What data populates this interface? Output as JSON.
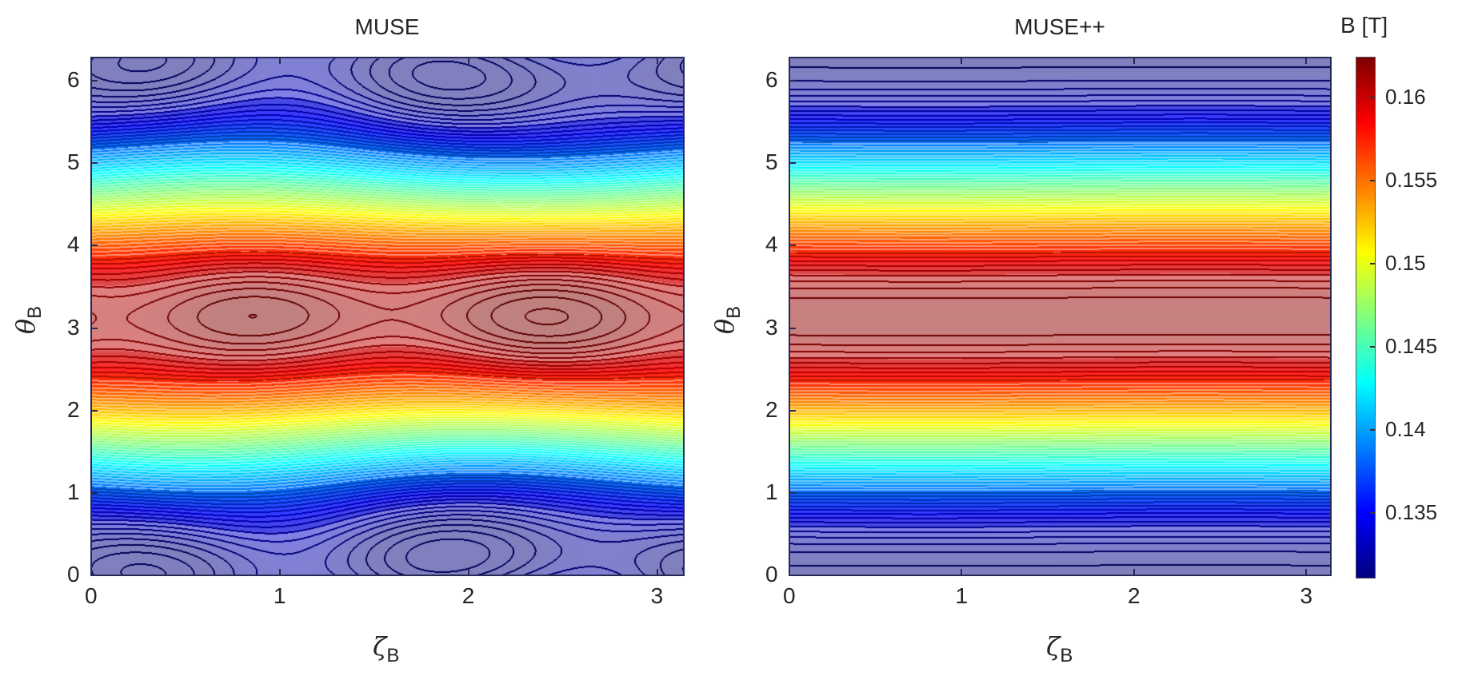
{
  "chart_data": [
    {
      "type": "heatmap",
      "subtype": "filled contour",
      "title": "MUSE",
      "xlabel": "ζ",
      "xlabel_sub": "B",
      "ylabel": "θ",
      "ylabel_sub": "B",
      "xlim": [
        0,
        3.1416
      ],
      "ylim": [
        0,
        6.2832
      ],
      "xticks": [
        "0",
        "1",
        "2",
        "3"
      ],
      "yticks": [
        "0",
        "1",
        "2",
        "3",
        "4",
        "5",
        "6"
      ],
      "field": {
        "mean": 0.1465,
        "amplitude": 0.0155,
        "max_theta": 3.14,
        "island_zeta": [
          0.85,
          2.3
        ],
        "min_island_zeta": [
          0.3,
          1.6
        ],
        "band_narrowest_zeta": 2.2
      },
      "contour_step": 0.0005
    },
    {
      "type": "heatmap",
      "subtype": "filled contour",
      "title": "MUSE++",
      "xlabel": "ζ",
      "xlabel_sub": "B",
      "ylabel": "θ",
      "ylabel_sub": "B",
      "xlim": [
        0,
        3.1416
      ],
      "ylim": [
        0,
        6.2832
      ],
      "xticks": [
        "0",
        "1",
        "2",
        "3"
      ],
      "yticks": [
        "0",
        "1",
        "2",
        "3",
        "4",
        "5",
        "6"
      ],
      "field": {
        "mean": 0.1465,
        "amplitude": 0.0155,
        "max_theta": 3.14
      },
      "contour_step": 0.0005
    }
  ],
  "colorbar": {
    "label": "B [T]",
    "colormap": "jet",
    "range": [
      0.1311,
      0.1624
    ],
    "ticks": [
      "0.135",
      "0.14",
      "0.145",
      "0.15",
      "0.155",
      "0.16"
    ],
    "tick_values": [
      0.135,
      0.14,
      0.145,
      0.15,
      0.155,
      0.16
    ]
  }
}
